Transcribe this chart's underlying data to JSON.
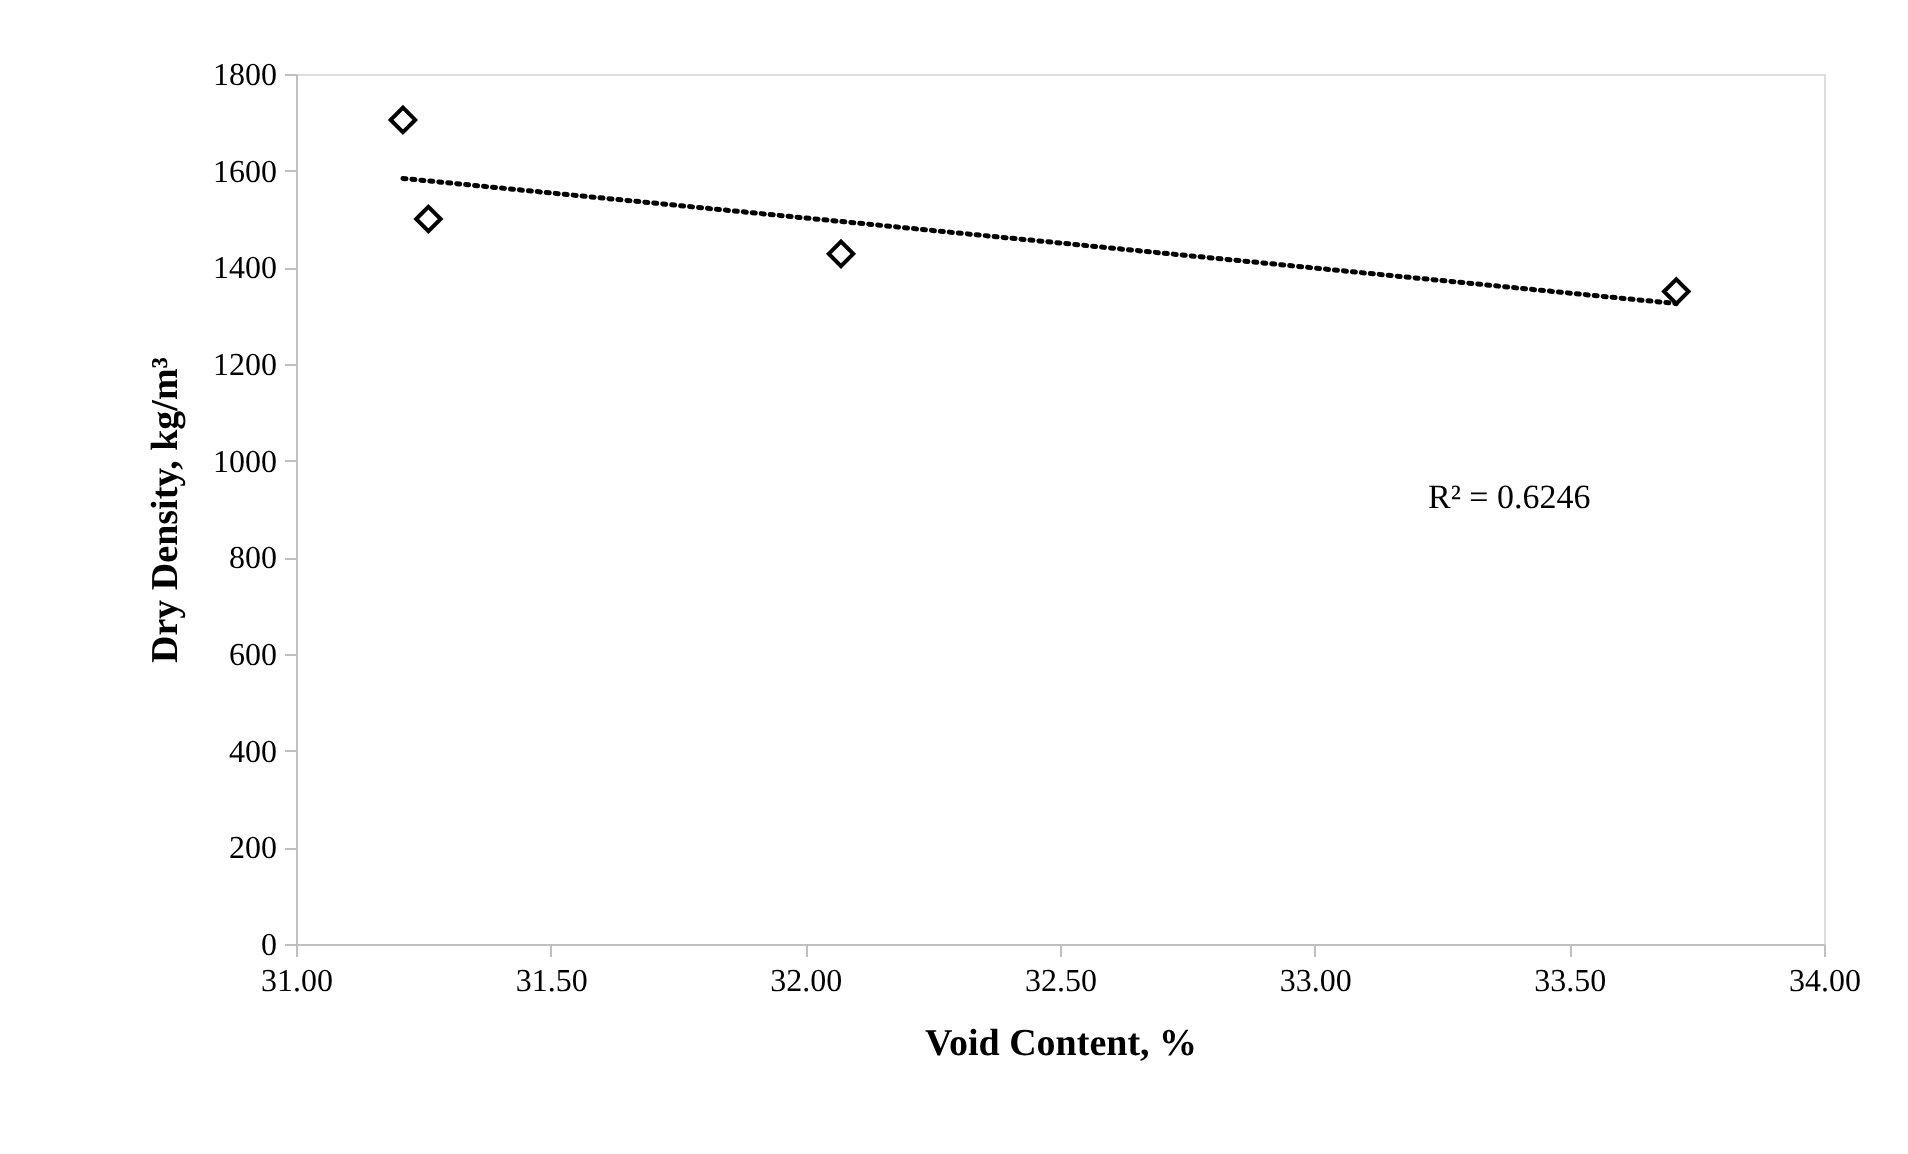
{
  "chart_data": {
    "type": "scatter",
    "xlabel": "Void Content, %",
    "ylabel": "Dry Density, kg/m³",
    "series": [
      {
        "color": "#000000",
        "marker": "diamond",
        "x": [
          31.21,
          31.26,
          32.07,
          33.71
        ],
        "values": [
          1705,
          1500,
          1428,
          1350
        ]
      },
      {
        "type": "line",
        "color": "#000000",
        "marker": "none",
        "line_style": "dotted",
        "x": [
          31.21,
          33.71
        ],
        "values": [
          1584,
          1325
        ]
      }
    ],
    "xlim": [
      31,
      34
    ],
    "ylim": [
      0,
      1800
    ],
    "xticks": [
      {
        "value": 31,
        "label": "31.00"
      },
      {
        "value": 31.5,
        "label": "31.50"
      },
      {
        "value": 32,
        "label": "32.00"
      },
      {
        "value": 32.5,
        "label": "32.50"
      },
      {
        "value": 33,
        "label": "33.00"
      },
      {
        "value": 33.5,
        "label": "33.50"
      },
      {
        "value": 34,
        "label": "34.00"
      }
    ],
    "yticks": [
      0,
      200,
      400,
      600,
      800,
      1000,
      1200,
      1400,
      1600,
      1800
    ],
    "annotations": [
      "R² = 0.6246"
    ],
    "grid": false
  }
}
